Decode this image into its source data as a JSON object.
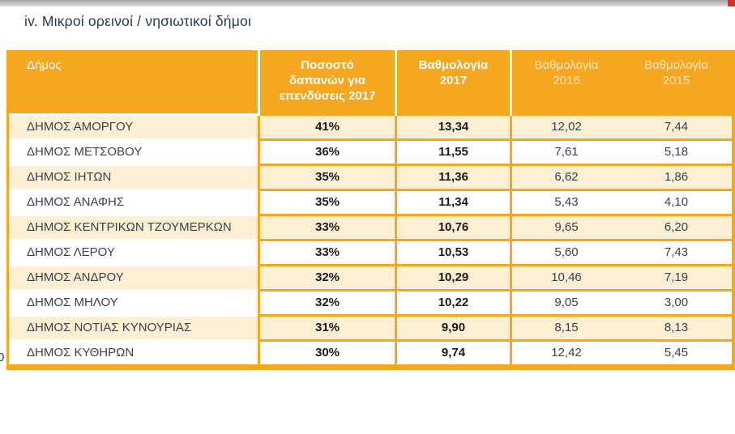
{
  "page": {
    "section_title": "iv. Μικροί ορεινοί / νησιωτικοί δήμοι",
    "cropped_left_text": "0"
  },
  "colors": {
    "accent_orange": "#F5A71F",
    "row_stripe": "#FCEFD3",
    "title_navy": "#24395E",
    "topbar_red": "#C5392B"
  },
  "table": {
    "headers": {
      "municipality": "Δήμος",
      "pct": "Ποσοστό δαπανών για επενδύσεις 2017",
      "s2017": "Βαθμολογία 2017",
      "s2016": "Βαθμολογία 2016",
      "s2015": "Βαθμολογία 2015"
    },
    "rows": [
      {
        "name": "ΔΗΜΟΣ ΑΜΟΡΓΟΥ",
        "pct": "41%",
        "s2017": "13,34",
        "s2016": "12,02",
        "s2015": "7,44"
      },
      {
        "name": "ΔΗΜΟΣ ΜΕΤΣΟΒΟΥ",
        "pct": "36%",
        "s2017": "11,55",
        "s2016": "7,61",
        "s2015": "5,18"
      },
      {
        "name": "ΔΗΜΟΣ ΙΗΤΩΝ",
        "pct": "35%",
        "s2017": "11,36",
        "s2016": "6,62",
        "s2015": "1,86"
      },
      {
        "name": "ΔΗΜΟΣ ΑΝΑΦΗΣ",
        "pct": "35%",
        "s2017": "11,34",
        "s2016": "5,43",
        "s2015": "4,10"
      },
      {
        "name": "ΔΗΜΟΣ ΚΕΝΤΡΙΚΩΝ ΤΖΟΥΜΕΡΚΩΝ",
        "pct": "33%",
        "s2017": "10,76",
        "s2016": "9,65",
        "s2015": "6,20"
      },
      {
        "name": "ΔΗΜΟΣ ΛΕΡΟΥ",
        "pct": "33%",
        "s2017": "10,53",
        "s2016": "5,60",
        "s2015": "7,43"
      },
      {
        "name": "ΔΗΜΟΣ ΑΝΔΡΟΥ",
        "pct": "32%",
        "s2017": "10,29",
        "s2016": "10,46",
        "s2015": "7,19"
      },
      {
        "name": "ΔΗΜΟΣ ΜΗΛΟΥ",
        "pct": "32%",
        "s2017": "10,22",
        "s2016": "9,05",
        "s2015": "3,00"
      },
      {
        "name": "ΔΗΜΟΣ ΝΟΤΙΑΣ ΚΥΝΟΥΡΙΑΣ",
        "pct": "31%",
        "s2017": "9,90",
        "s2016": "8,15",
        "s2015": "8,13"
      },
      {
        "name": "ΔΗΜΟΣ ΚΥΘΗΡΩΝ",
        "pct": "30%",
        "s2017": "9,74",
        "s2016": "12,42",
        "s2015": "5,45"
      }
    ]
  }
}
